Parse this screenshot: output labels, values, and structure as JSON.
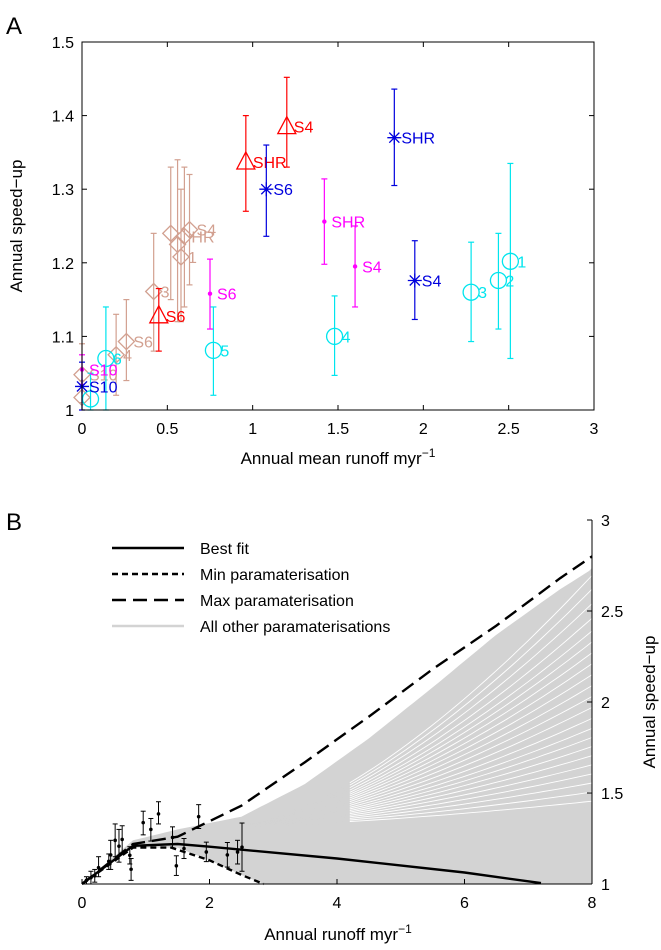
{
  "chart_data": [
    {
      "panel_label": "A",
      "type": "scatter",
      "xlabel": "Annual mean runoff myr",
      "xlabel_exponent": "−1",
      "ylabel": "Annual speed−up",
      "xlim": [
        0,
        3
      ],
      "ylim": [
        1,
        1.5
      ],
      "xticks": [
        "0",
        "0.5",
        "1",
        "1.5",
        "2",
        "2.5",
        "3"
      ],
      "yticks": [
        "1",
        "1.1",
        "1.2",
        "1.3",
        "1.4",
        "1.5"
      ],
      "grid": false,
      "colors": {
        "red": "#ff0000",
        "blue": "#0000dd",
        "magenta": "#ff00ff",
        "cyan": "#00e5ee",
        "tan": "#d2a090"
      },
      "points": [
        {
          "label": "S4",
          "color": "red",
          "marker": "triangle",
          "x": 1.2,
          "y": 1.385,
          "lo": 1.33,
          "hi": 1.452
        },
        {
          "label": "SHR",
          "color": "red",
          "marker": "triangle",
          "x": 0.96,
          "y": 1.337,
          "lo": 1.27,
          "hi": 1.4
        },
        {
          "label": "S6",
          "color": "red",
          "marker": "triangle",
          "x": 0.45,
          "y": 1.128,
          "lo": 1.08,
          "hi": 1.165
        },
        {
          "label": "SHR",
          "color": "blue",
          "marker": "star",
          "x": 1.83,
          "y": 1.37,
          "lo": 1.305,
          "hi": 1.436
        },
        {
          "label": "S6",
          "color": "blue",
          "marker": "star",
          "x": 1.08,
          "y": 1.3,
          "lo": 1.236,
          "hi": 1.36
        },
        {
          "label": "S4",
          "color": "blue",
          "marker": "star",
          "x": 1.95,
          "y": 1.176,
          "lo": 1.123,
          "hi": 1.23
        },
        {
          "label": "S10",
          "color": "blue",
          "marker": "star",
          "x": 0.0,
          "y": 1.032,
          "lo": 1.0,
          "hi": 1.065
        },
        {
          "label": "SHR",
          "color": "magenta",
          "marker": "dot",
          "x": 1.42,
          "y": 1.256,
          "lo": 1.198,
          "hi": 1.314
        },
        {
          "label": "S4",
          "color": "magenta",
          "marker": "dot",
          "x": 1.6,
          "y": 1.195,
          "lo": 1.14,
          "hi": 1.25
        },
        {
          "label": "S6",
          "color": "magenta",
          "marker": "dot",
          "x": 0.75,
          "y": 1.158,
          "lo": 1.11,
          "hi": 1.205
        },
        {
          "label": "S10",
          "color": "magenta",
          "marker": "dot",
          "x": 0.0,
          "y": 1.055,
          "lo": 1.035,
          "hi": 1.075
        },
        {
          "label": "1",
          "color": "cyan",
          "marker": "circle",
          "x": 2.51,
          "y": 1.202,
          "lo": 1.07,
          "hi": 1.335
        },
        {
          "label": "2",
          "color": "cyan",
          "marker": "circle",
          "x": 2.44,
          "y": 1.176,
          "lo": 1.11,
          "hi": 1.24
        },
        {
          "label": "3",
          "color": "cyan",
          "marker": "circle",
          "x": 2.28,
          "y": 1.16,
          "lo": 1.093,
          "hi": 1.228
        },
        {
          "label": "4",
          "color": "cyan",
          "marker": "circle",
          "x": 1.48,
          "y": 1.1,
          "lo": 1.047,
          "hi": 1.155
        },
        {
          "label": "5",
          "color": "cyan",
          "marker": "circle",
          "x": 0.77,
          "y": 1.081,
          "lo": 1.02,
          "hi": 1.14
        },
        {
          "label": "6",
          "color": "cyan",
          "marker": "circle",
          "x": 0.14,
          "y": 1.07,
          "lo": 1.0,
          "hi": 1.14
        },
        {
          "label": "",
          "color": "cyan",
          "marker": "circle",
          "x": 0.05,
          "y": 1.015,
          "lo": 1.0,
          "hi": 1.05
        },
        {
          "label": "S4",
          "color": "tan",
          "marker": "diamond",
          "x": 0.63,
          "y": 1.245,
          "lo": 1.17,
          "hi": 1.32
        },
        {
          "label": "1",
          "color": "tan",
          "marker": "diamond",
          "x": 0.58,
          "y": 1.208,
          "lo": 1.12,
          "hi": 1.3
        },
        {
          "label": "HR",
          "color": "tan",
          "marker": "diamond",
          "x": 0.6,
          "y": 1.236,
          "lo": 1.14,
          "hi": 1.33
        },
        {
          "label": "",
          "color": "tan",
          "marker": "diamond",
          "x": 0.52,
          "y": 1.24,
          "lo": 1.15,
          "hi": 1.33
        },
        {
          "label": "",
          "color": "tan",
          "marker": "diamond",
          "x": 0.56,
          "y": 1.225,
          "lo": 1.12,
          "hi": 1.34
        },
        {
          "label": "3",
          "color": "tan",
          "marker": "diamond",
          "x": 0.42,
          "y": 1.161,
          "lo": 1.08,
          "hi": 1.24
        },
        {
          "label": "S6",
          "color": "tan",
          "marker": "diamond",
          "x": 0.26,
          "y": 1.093,
          "lo": 1.04,
          "hi": 1.15
        },
        {
          "label": "4",
          "color": "tan",
          "marker": "diamond",
          "x": 0.2,
          "y": 1.075,
          "lo": 1.02,
          "hi": 1.13
        },
        {
          "label": "S10",
          "color": "tan",
          "marker": "diamond",
          "x": 0.0,
          "y": 1.048,
          "lo": 1.01,
          "hi": 1.09
        },
        {
          "label": "",
          "color": "tan",
          "marker": "diamond",
          "x": 0.0,
          "y": 1.017,
          "lo": 1.0,
          "hi": 1.04
        }
      ]
    },
    {
      "panel_label": "B",
      "type": "line",
      "xlabel": "Annual runoff myr",
      "xlabel_exponent": "−1",
      "ylabel": "Annual speed−up",
      "y_axis_side": "right",
      "xlim": [
        0,
        8
      ],
      "ylim": [
        1,
        3
      ],
      "xticks": [
        "0",
        "2",
        "4",
        "6",
        "8"
      ],
      "yticks": [
        "1",
        "1.5",
        "2",
        "2.5",
        "3"
      ],
      "grid": false,
      "legend_position": "top-left",
      "series": [
        {
          "name": "Best fit",
          "style": "solid",
          "color": "#000000",
          "x": [
            0,
            0.8,
            1.5,
            2.0,
            4.0,
            6.0,
            7.2
          ],
          "y": [
            1.0,
            1.21,
            1.22,
            1.205,
            1.14,
            1.063,
            1.005
          ]
        },
        {
          "name": "Min paramaterisation",
          "style": "dotted",
          "color": "#000000",
          "x": [
            0,
            0.8,
            1.4,
            2.0,
            2.5,
            2.85
          ],
          "y": [
            1.0,
            1.2,
            1.2,
            1.13,
            1.05,
            1.0
          ]
        },
        {
          "name": "Max paramaterisation",
          "style": "dashed",
          "color": "#000000",
          "x": [
            0,
            0.8,
            1.5,
            2.5,
            3.5,
            4.5,
            5.5,
            6.5,
            7.5,
            8.0
          ],
          "y": [
            1.0,
            1.22,
            1.26,
            1.43,
            1.67,
            1.92,
            2.18,
            2.42,
            2.68,
            2.8
          ]
        },
        {
          "name": "All other paramaterisations",
          "style": "solid",
          "color": "#d3d3d3",
          "upper_x": [
            0,
            0.8,
            1.5,
            2.5,
            3.5,
            4.5,
            5.5,
            6.5,
            7.5,
            8.0
          ],
          "upper_y": [
            1.0,
            1.24,
            1.3,
            1.37,
            1.55,
            1.8,
            2.08,
            2.37,
            2.62,
            2.73
          ],
          "lower_x": [
            0,
            0.8,
            1.5,
            2.0,
            2.5,
            2.85
          ],
          "lower_y": [
            1.0,
            1.2,
            1.2,
            1.13,
            1.05,
            1.0
          ],
          "end_values": [
            2.73,
            2.66,
            2.58,
            2.5,
            2.42,
            2.36,
            2.3,
            2.24,
            2.18,
            2.12,
            2.06,
            2.0,
            1.94,
            1.88,
            1.83,
            1.78,
            1.73,
            1.68,
            1.63,
            1.58,
            1.53,
            1.48,
            1.43
          ]
        }
      ],
      "observations": [
        {
          "x": 0.07,
          "y": 1.02,
          "lo": 1.0,
          "hi": 1.04
        },
        {
          "x": 0.14,
          "y": 1.035,
          "lo": 1.0,
          "hi": 1.07
        },
        {
          "x": 0.2,
          "y": 1.045,
          "lo": 1.01,
          "hi": 1.08
        },
        {
          "x": 0.26,
          "y": 1.09,
          "lo": 1.04,
          "hi": 1.15
        },
        {
          "x": 0.42,
          "y": 1.125,
          "lo": 1.08,
          "hi": 1.165
        },
        {
          "x": 0.45,
          "y": 1.16,
          "lo": 1.08,
          "hi": 1.24
        },
        {
          "x": 0.52,
          "y": 1.24,
          "lo": 1.15,
          "hi": 1.33
        },
        {
          "x": 0.58,
          "y": 1.208,
          "lo": 1.12,
          "hi": 1.3
        },
        {
          "x": 0.63,
          "y": 1.245,
          "lo": 1.17,
          "hi": 1.32
        },
        {
          "x": 0.75,
          "y": 1.158,
          "lo": 1.11,
          "hi": 1.205
        },
        {
          "x": 0.77,
          "y": 1.081,
          "lo": 1.02,
          "hi": 1.14
        },
        {
          "x": 0.96,
          "y": 1.337,
          "lo": 1.27,
          "hi": 1.4
        },
        {
          "x": 1.08,
          "y": 1.3,
          "lo": 1.236,
          "hi": 1.36
        },
        {
          "x": 1.2,
          "y": 1.385,
          "lo": 1.33,
          "hi": 1.452
        },
        {
          "x": 1.42,
          "y": 1.256,
          "lo": 1.198,
          "hi": 1.314
        },
        {
          "x": 1.48,
          "y": 1.1,
          "lo": 1.047,
          "hi": 1.155
        },
        {
          "x": 1.6,
          "y": 1.195,
          "lo": 1.14,
          "hi": 1.25
        },
        {
          "x": 1.83,
          "y": 1.37,
          "lo": 1.305,
          "hi": 1.436
        },
        {
          "x": 1.95,
          "y": 1.176,
          "lo": 1.123,
          "hi": 1.23
        },
        {
          "x": 2.28,
          "y": 1.16,
          "lo": 1.093,
          "hi": 1.228
        },
        {
          "x": 2.44,
          "y": 1.176,
          "lo": 1.11,
          "hi": 1.24
        },
        {
          "x": 2.51,
          "y": 1.202,
          "lo": 1.07,
          "hi": 1.335
        }
      ]
    }
  ]
}
